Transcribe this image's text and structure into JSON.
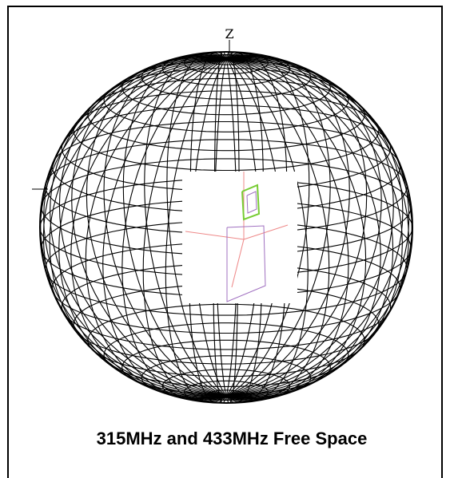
{
  "figure": {
    "axis_label": "Z",
    "caption": "315MHz and 433MHz Free Space"
  }
}
